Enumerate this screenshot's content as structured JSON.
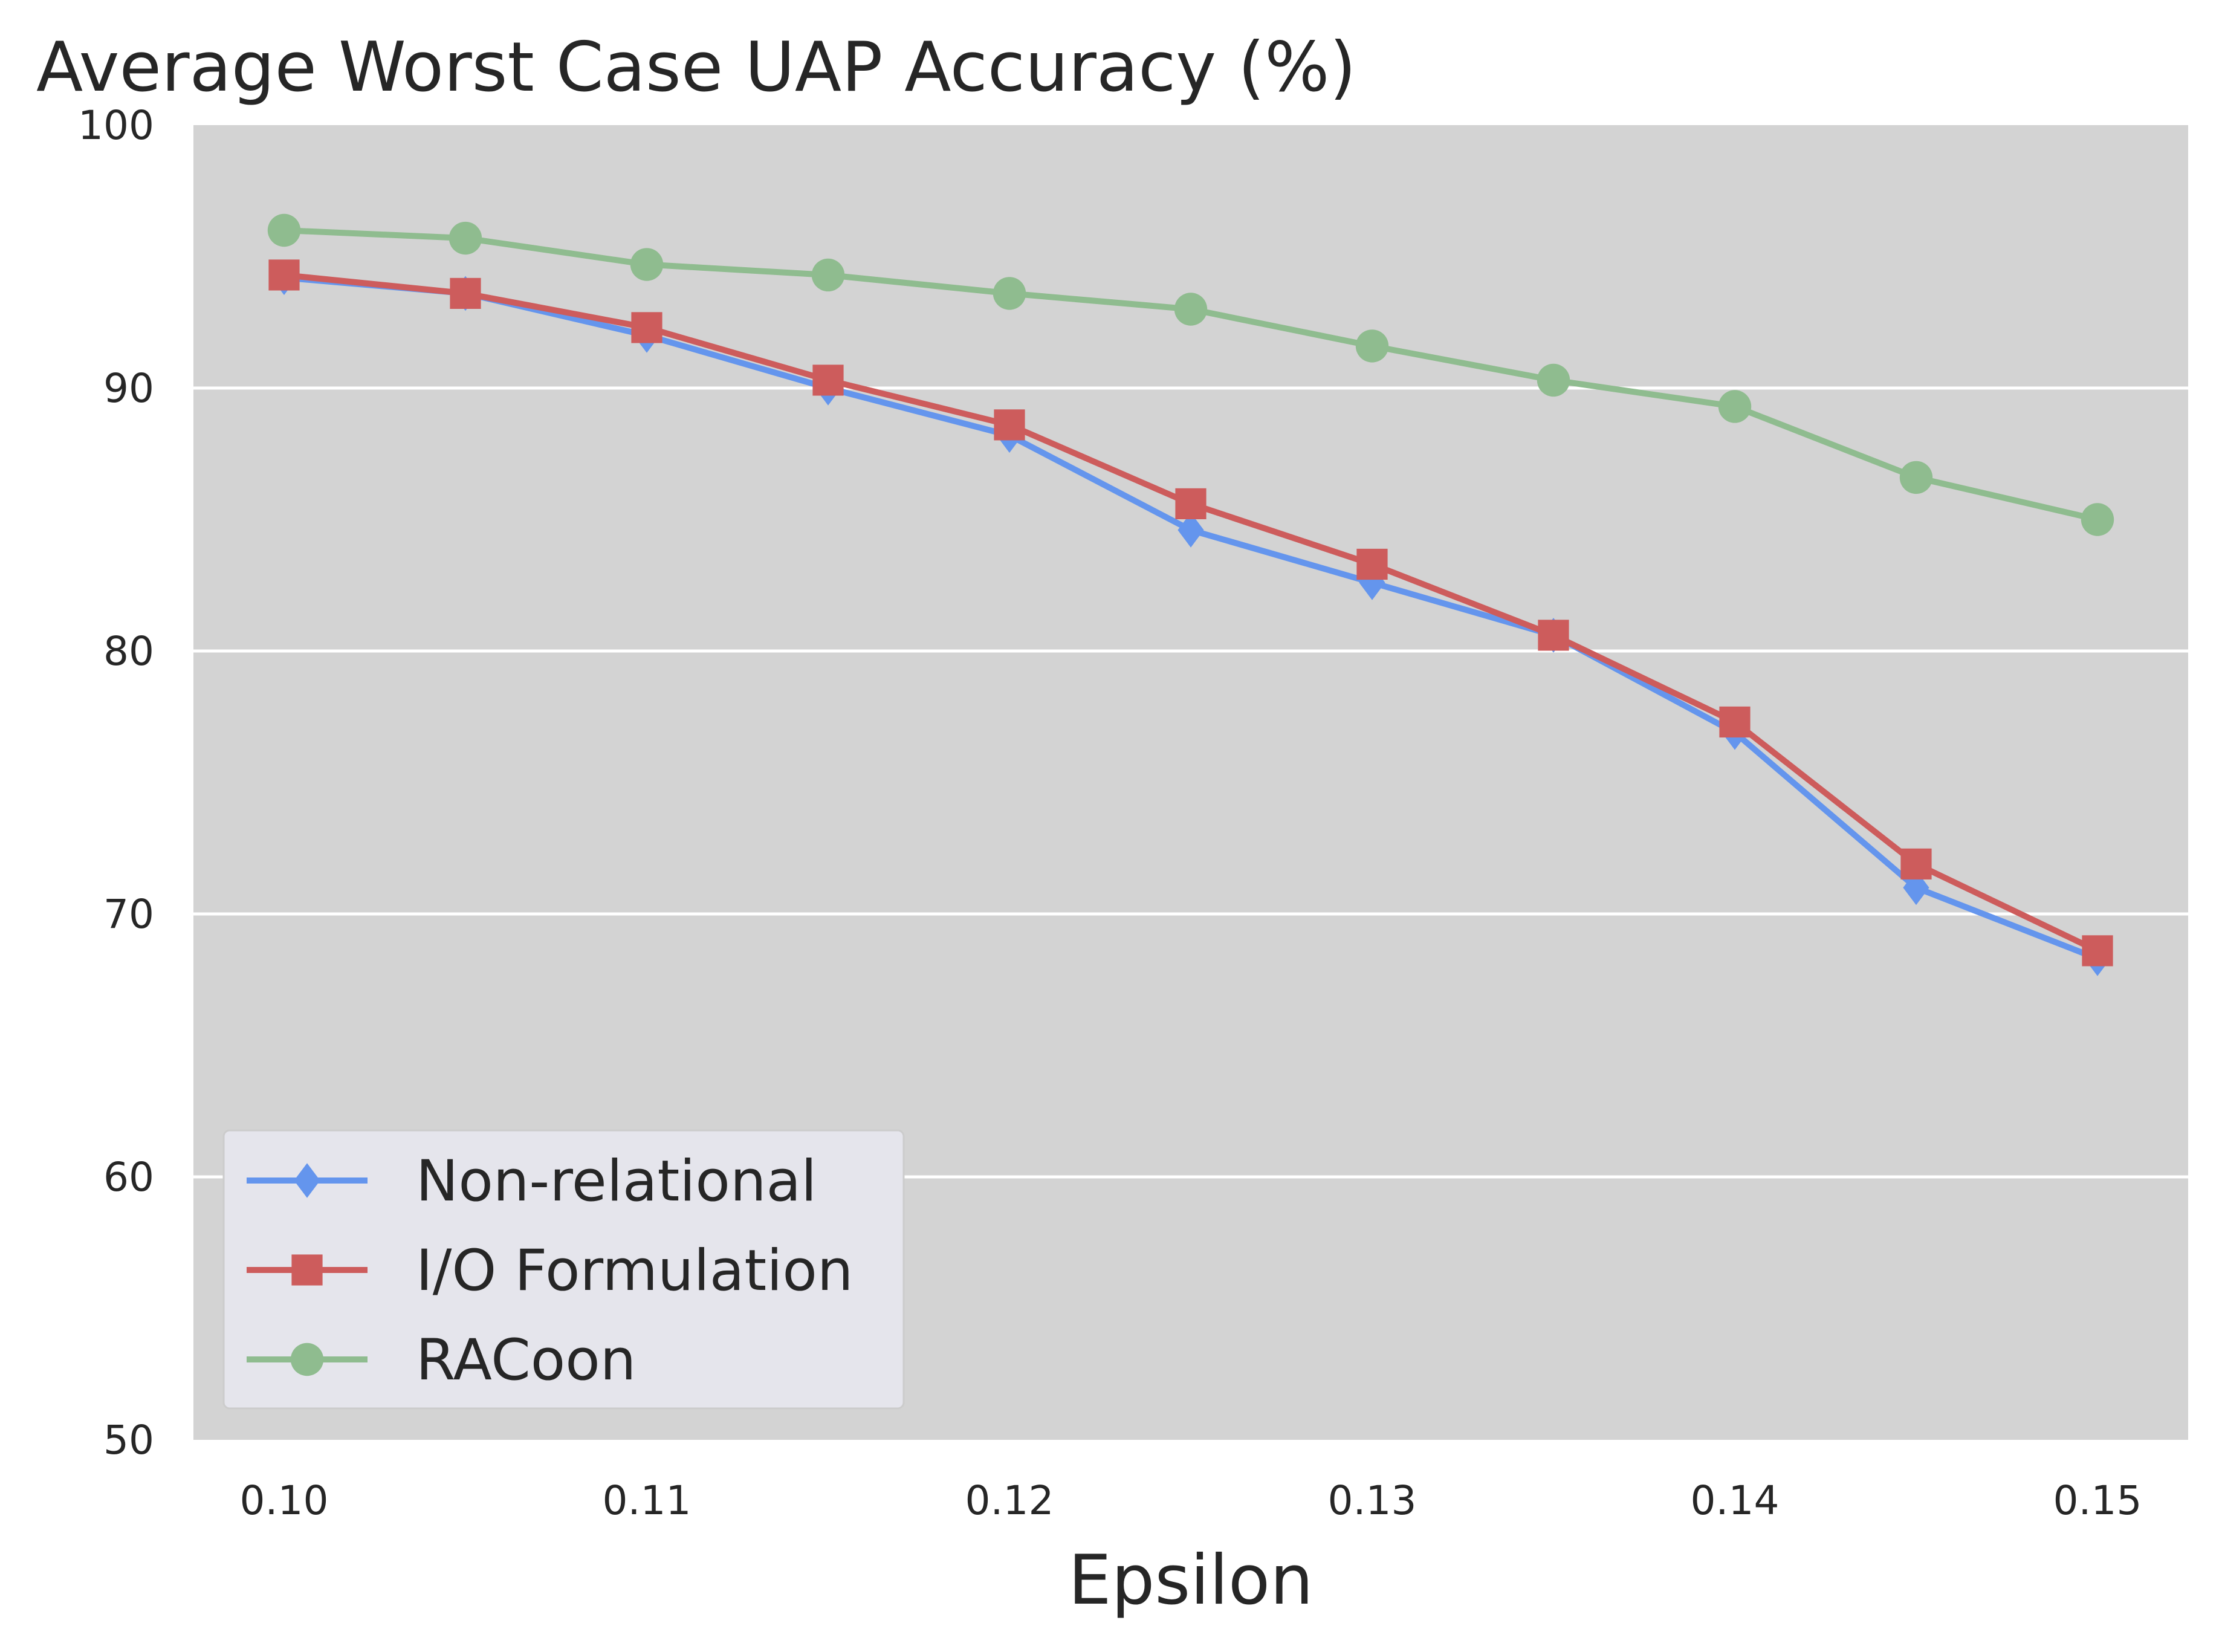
{
  "chart_data": {
    "type": "line",
    "title": "Average Worst Case UAP Accuracy (%)",
    "xlabel": "Epsilon",
    "ylabel": "",
    "x": [
      0.1,
      0.105,
      0.11,
      0.115,
      0.12,
      0.125,
      0.13,
      0.135,
      0.14,
      0.145,
      0.15
    ],
    "xlim": [
      0.0975,
      0.1525
    ],
    "ylim": [
      50,
      100
    ],
    "xticks": [
      0.1,
      0.11,
      0.12,
      0.13,
      0.14,
      0.15
    ],
    "xtick_labels": [
      "0.10",
      "0.11",
      "0.12",
      "0.13",
      "0.14",
      "0.15"
    ],
    "yticks": [
      50,
      60,
      70,
      80,
      90,
      100
    ],
    "ytick_labels": [
      "50",
      "60",
      "70",
      "80",
      "90",
      "100"
    ],
    "grid": "horizontal",
    "legend_position": "lower-left",
    "background_color": "#d3d3d3",
    "series": [
      {
        "name": "Non-relational",
        "color": "#6495ed",
        "marker": "diamond",
        "values": [
          94.2,
          93.6,
          92.0,
          90.0,
          88.2,
          84.6,
          82.6,
          80.6,
          76.9,
          71.0,
          68.3
        ]
      },
      {
        "name": "I/O Formulation",
        "color": "#cd5c5c",
        "marker": "square",
        "values": [
          94.3,
          93.6,
          92.3,
          90.3,
          88.6,
          85.6,
          83.3,
          80.6,
          77.3,
          71.9,
          68.6
        ]
      },
      {
        "name": "RACoon",
        "color": "#8fbc8f",
        "marker": "circle",
        "values": [
          96.0,
          95.7,
          94.7,
          94.3,
          93.6,
          93.0,
          91.6,
          90.3,
          89.3,
          86.6,
          85.0
        ]
      }
    ]
  }
}
